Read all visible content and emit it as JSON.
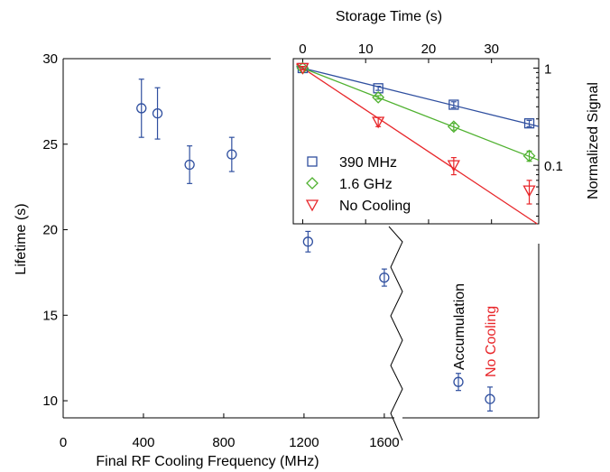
{
  "chart_data": [
    {
      "id": "main",
      "type": "scatter",
      "xlabel": "Final RF Cooling Frequency (MHz)",
      "ylabel": "Lifetime (s)",
      "xlim": [
        0,
        1650
      ],
      "ylim": [
        9,
        30
      ],
      "xticks": [
        0,
        400,
        800,
        1200,
        1600
      ],
      "yticks": [
        10,
        15,
        20,
        25,
        30
      ],
      "grid": false,
      "color": "#2f4f9f",
      "points": [
        {
          "x": 390,
          "y": 27.1,
          "err": 1.7
        },
        {
          "x": 470,
          "y": 26.8,
          "err": 1.5
        },
        {
          "x": 630,
          "y": 23.8,
          "err": 1.1
        },
        {
          "x": 840,
          "y": 24.4,
          "err": 1.0
        },
        {
          "x": 1220,
          "y": 19.3,
          "err": 0.6
        },
        {
          "x": 1600,
          "y": 17.2,
          "err": 0.5
        }
      ]
    },
    {
      "id": "side",
      "type": "scatter",
      "categories": [
        "Accumulation",
        "No Cooling"
      ],
      "category_colors": [
        "#000000",
        "#e8262a"
      ],
      "points": [
        {
          "category": "Accumulation",
          "y": 11.1,
          "err": 0.5
        },
        {
          "category": "No Cooling",
          "y": 10.1,
          "err": 0.7
        }
      ]
    },
    {
      "id": "inset",
      "type": "scatter",
      "xlabel": "Storage Time (s)",
      "ylabel": "Normalized Signal",
      "xlim": [
        -1.5,
        37.5
      ],
      "ylim": [
        0.025,
        1.25
      ],
      "yscale": "log",
      "xticks": [
        0,
        10,
        20,
        30
      ],
      "yticks": [
        1,
        0.1
      ],
      "ytick_labels": [
        "1",
        "0.1"
      ],
      "legend_position": "bottom-left",
      "series": [
        {
          "name": "390 MHz",
          "color": "#2f4f9f",
          "marker": "square",
          "tau": 27.1,
          "points": [
            {
              "x": 0,
              "y": 1.0,
              "err": 0.03
            },
            {
              "x": 12,
              "y": 0.62,
              "err": 0.03
            },
            {
              "x": 24,
              "y": 0.42,
              "err": 0.03
            },
            {
              "x": 36,
              "y": 0.27,
              "err": 0.02
            }
          ]
        },
        {
          "name": "1.6 GHz",
          "color": "#4fb12f",
          "marker": "diamond",
          "tau": 17.2,
          "points": [
            {
              "x": 0,
              "y": 1.0,
              "err": 0.03
            },
            {
              "x": 12,
              "y": 0.5,
              "err": 0.02
            },
            {
              "x": 24,
              "y": 0.25,
              "err": 0.02
            },
            {
              "x": 36,
              "y": 0.125,
              "err": 0.015
            }
          ]
        },
        {
          "name": "No Cooling",
          "color": "#e8262a",
          "marker": "triangle-down",
          "tau": 10.1,
          "points": [
            {
              "x": 0,
              "y": 1.0,
              "err": 0.04
            },
            {
              "x": 12,
              "y": 0.28,
              "err": 0.03
            },
            {
              "x": 24,
              "y": 0.1,
              "err": 0.02
            },
            {
              "x": 36,
              "y": 0.055,
              "err": 0.015
            }
          ]
        }
      ]
    }
  ]
}
